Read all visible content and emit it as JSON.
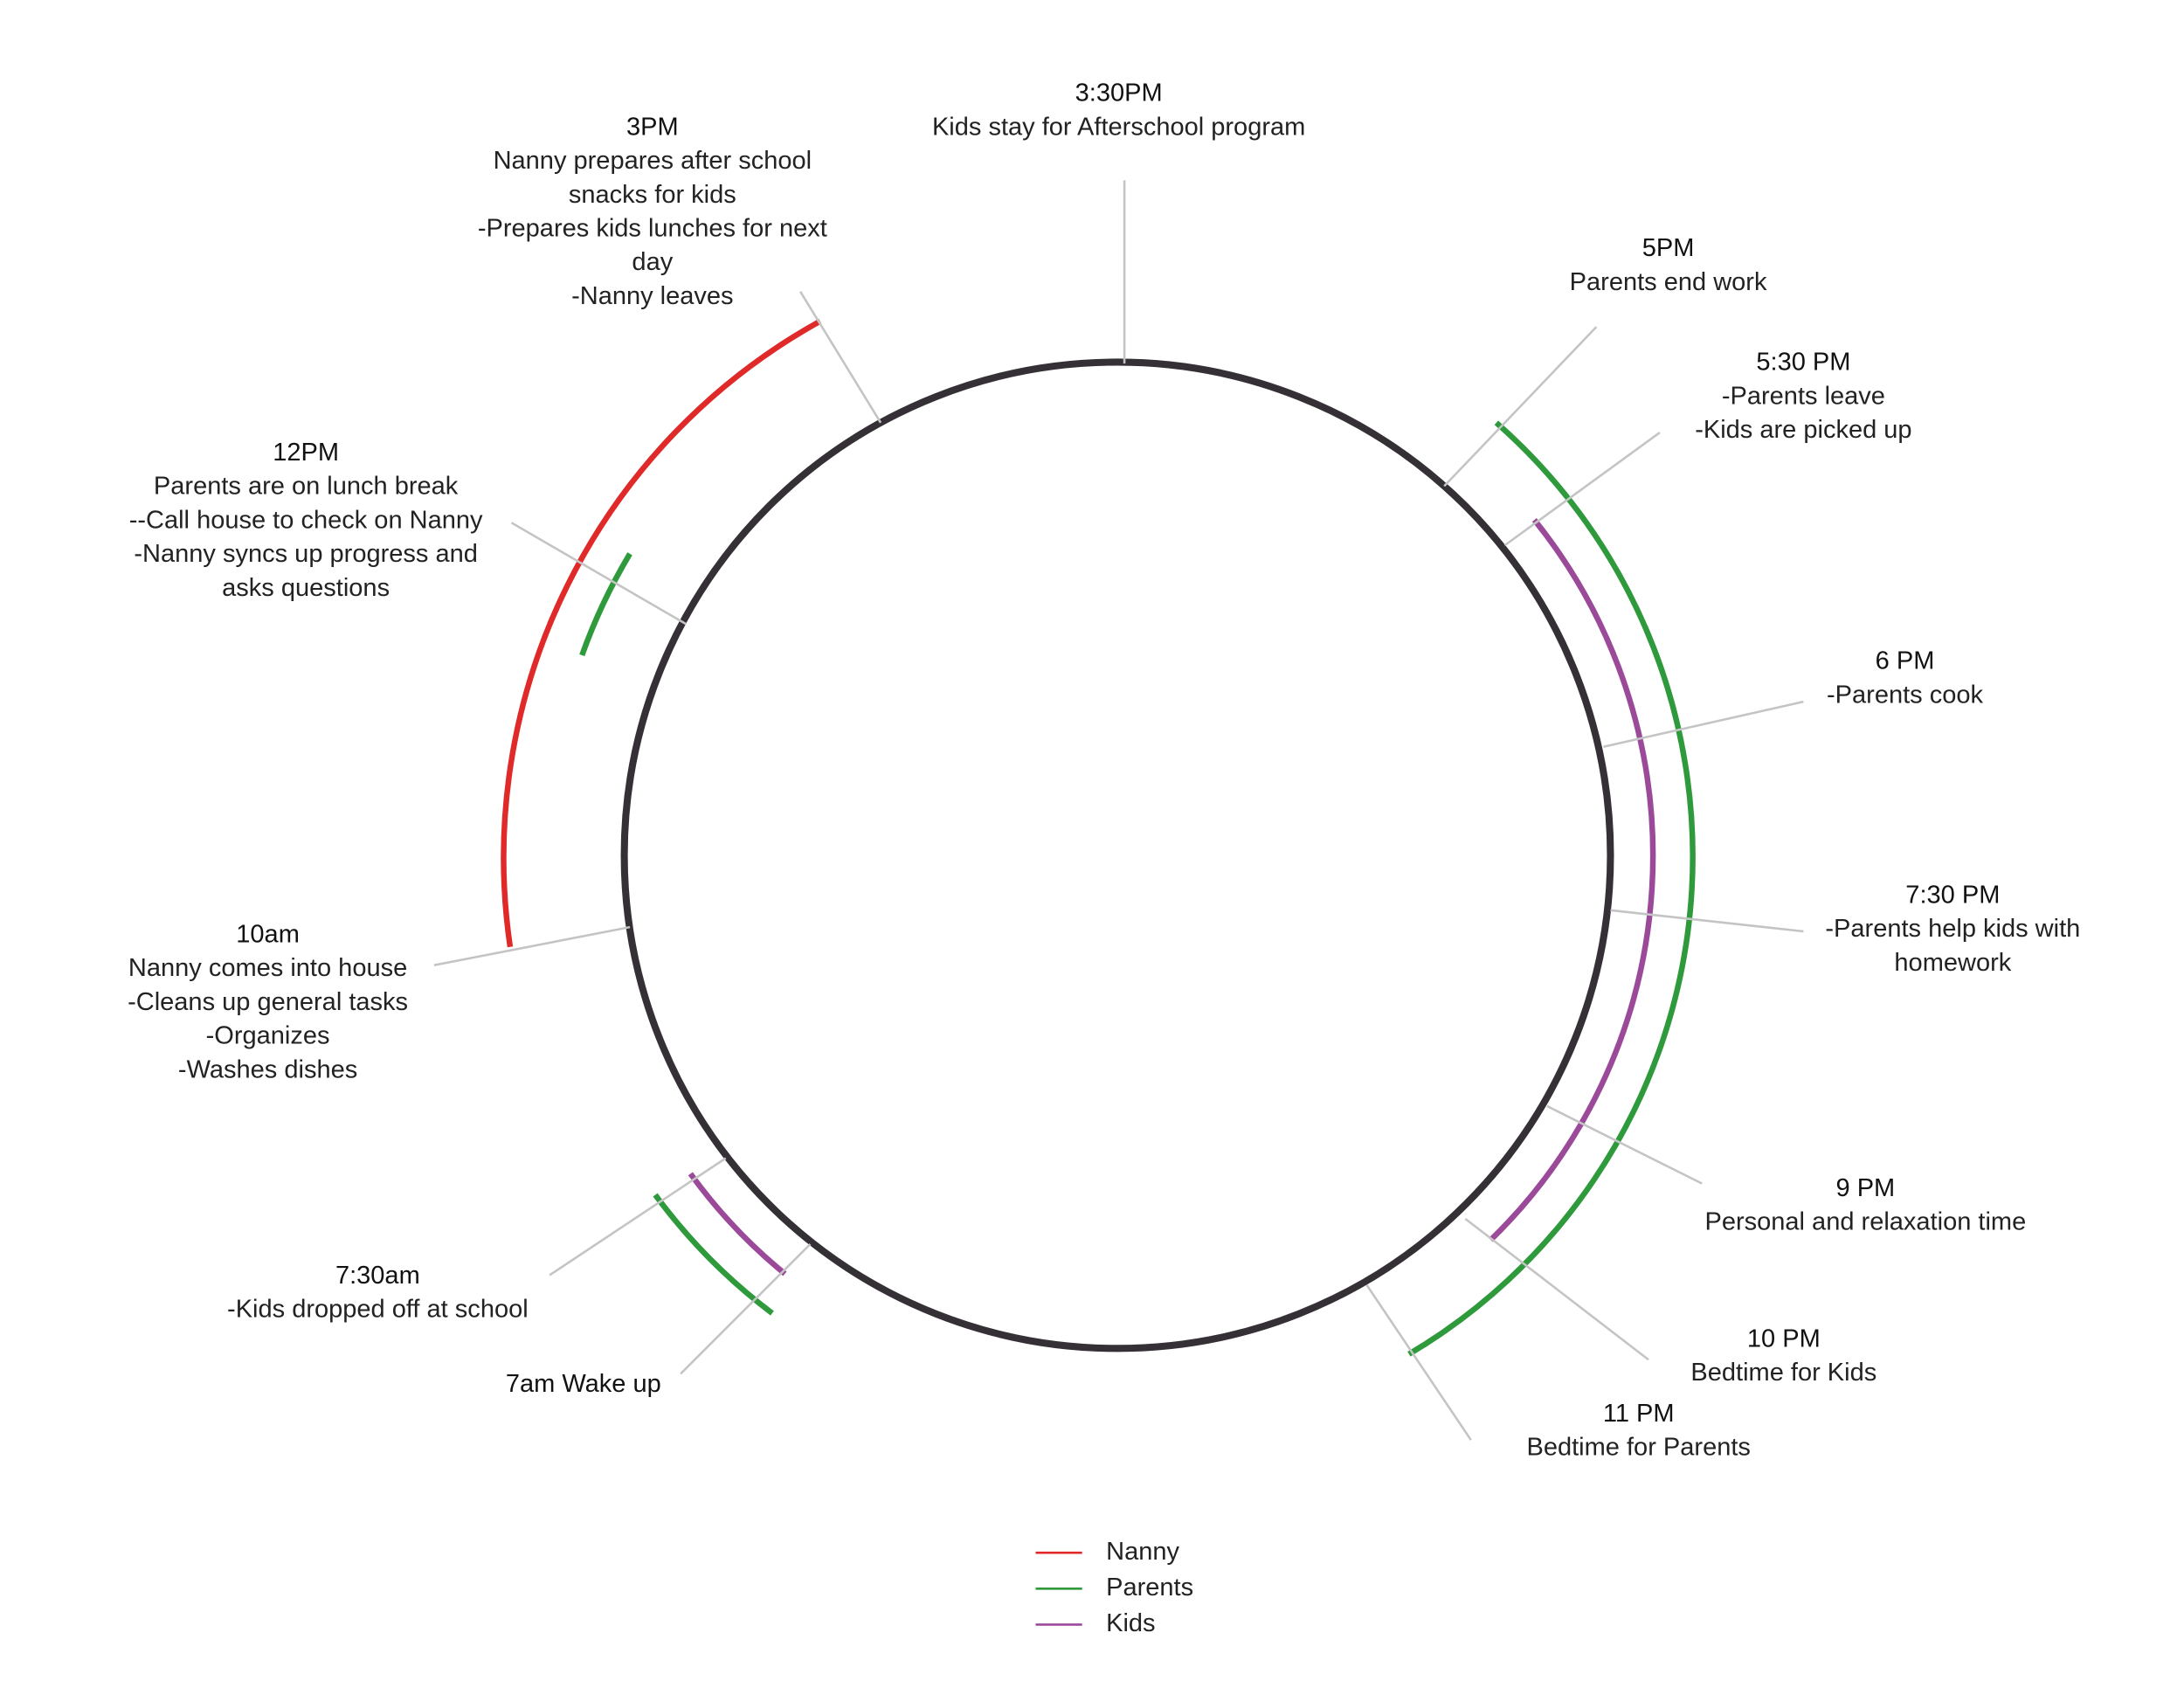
{
  "events": [
    {
      "time": "3:30PM",
      "lines": [
        "Kids stay for Afterschool program"
      ]
    },
    {
      "time": "3PM",
      "lines": [
        "Nanny prepares after school",
        "snacks for kids",
        "-Prepares kids lunches for next",
        "day",
        "-Nanny leaves"
      ]
    },
    {
      "time": "5PM",
      "lines": [
        "Parents end work"
      ]
    },
    {
      "time": "5:30 PM",
      "lines": [
        "-Parents leave",
        "-Kids are picked up"
      ]
    },
    {
      "time": "12PM",
      "lines": [
        "Parents are on lunch break",
        "--Call house to check on Nanny",
        "-Nanny syncs up progress and",
        "asks questions"
      ]
    },
    {
      "time": "6 PM",
      "lines": [
        "-Parents cook"
      ]
    },
    {
      "time": "7:30 PM",
      "lines": [
        "-Parents help kids with",
        "homework"
      ]
    },
    {
      "time": "10am",
      "lines": [
        "Nanny comes into house",
        "-Cleans up general tasks",
        "-Organizes",
        "-Washes dishes"
      ]
    },
    {
      "time": "9 PM",
      "lines": [
        "Personal and relaxation time"
      ]
    },
    {
      "time": "7:30am",
      "lines": [
        "-Kids dropped off at school"
      ]
    },
    {
      "time": "10 PM",
      "lines": [
        "Bedtime for Kids"
      ]
    },
    {
      "time": "7am Wake up",
      "lines": []
    },
    {
      "time": "11 PM",
      "lines": [
        "Bedtime for Parents"
      ]
    }
  ],
  "legend": [
    {
      "name": "Nanny",
      "color": "#e02a2a"
    },
    {
      "name": "Parents",
      "color": "#2e9a3c"
    },
    {
      "name": "Kids",
      "color": "#9b4a9a"
    }
  ]
}
